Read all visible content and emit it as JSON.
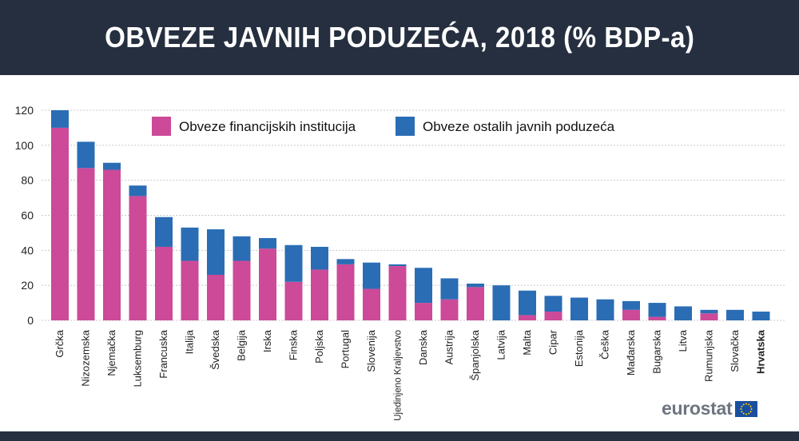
{
  "title": "OBVEZE JAVNIH PODUZEĆA, 2018 (% BDP-a)",
  "logo_text": "eurostat",
  "colors": {
    "header_bg": "#252f3f",
    "financial": "#cc4a98",
    "other": "#2a6db5",
    "grid": "#c8c8c8",
    "axis_text": "#222222"
  },
  "chart_data": {
    "type": "bar",
    "stacked": true,
    "categories": [
      "Grčka",
      "Nizozemska",
      "Njemačka",
      "Luksemburg",
      "Francuska",
      "Italija",
      "Švedska",
      "Belgija",
      "Irska",
      "Finska",
      "Poljska",
      "Portugal",
      "Slovenija",
      "Ujedinjeno Kraljevstvo",
      "Danska",
      "Austrija",
      "Španjolska",
      "Latvija",
      "Malta",
      "Cipar",
      "Estonija",
      "Češka",
      "Mađarska",
      "Bugarska",
      "Litva",
      "Rumunjska",
      "Slovačka",
      "Hrvatska"
    ],
    "highlight_category": "Hrvatska",
    "series": [
      {
        "name": "Obveze financijskih institucija",
        "color": "#cc4a98",
        "values": [
          110,
          87,
          86,
          71,
          42,
          34,
          26,
          34,
          41,
          22,
          29,
          32,
          18,
          31,
          10,
          12,
          19,
          0,
          3,
          5,
          0,
          0,
          6,
          2,
          0,
          4,
          0,
          0
        ]
      },
      {
        "name": "Obveze ostalih javnih poduzeća",
        "color": "#2a6db5",
        "values": [
          10,
          15,
          4,
          6,
          17,
          19,
          26,
          14,
          6,
          21,
          13,
          3,
          15,
          1,
          20,
          12,
          2,
          20,
          14,
          9,
          13,
          12,
          5,
          8,
          8,
          2,
          6,
          5
        ]
      }
    ],
    "ylim": [
      0,
      120
    ],
    "yticks": [
      0,
      20,
      40,
      60,
      80,
      100,
      120
    ],
    "grid": true,
    "legend_position": "top-center"
  }
}
